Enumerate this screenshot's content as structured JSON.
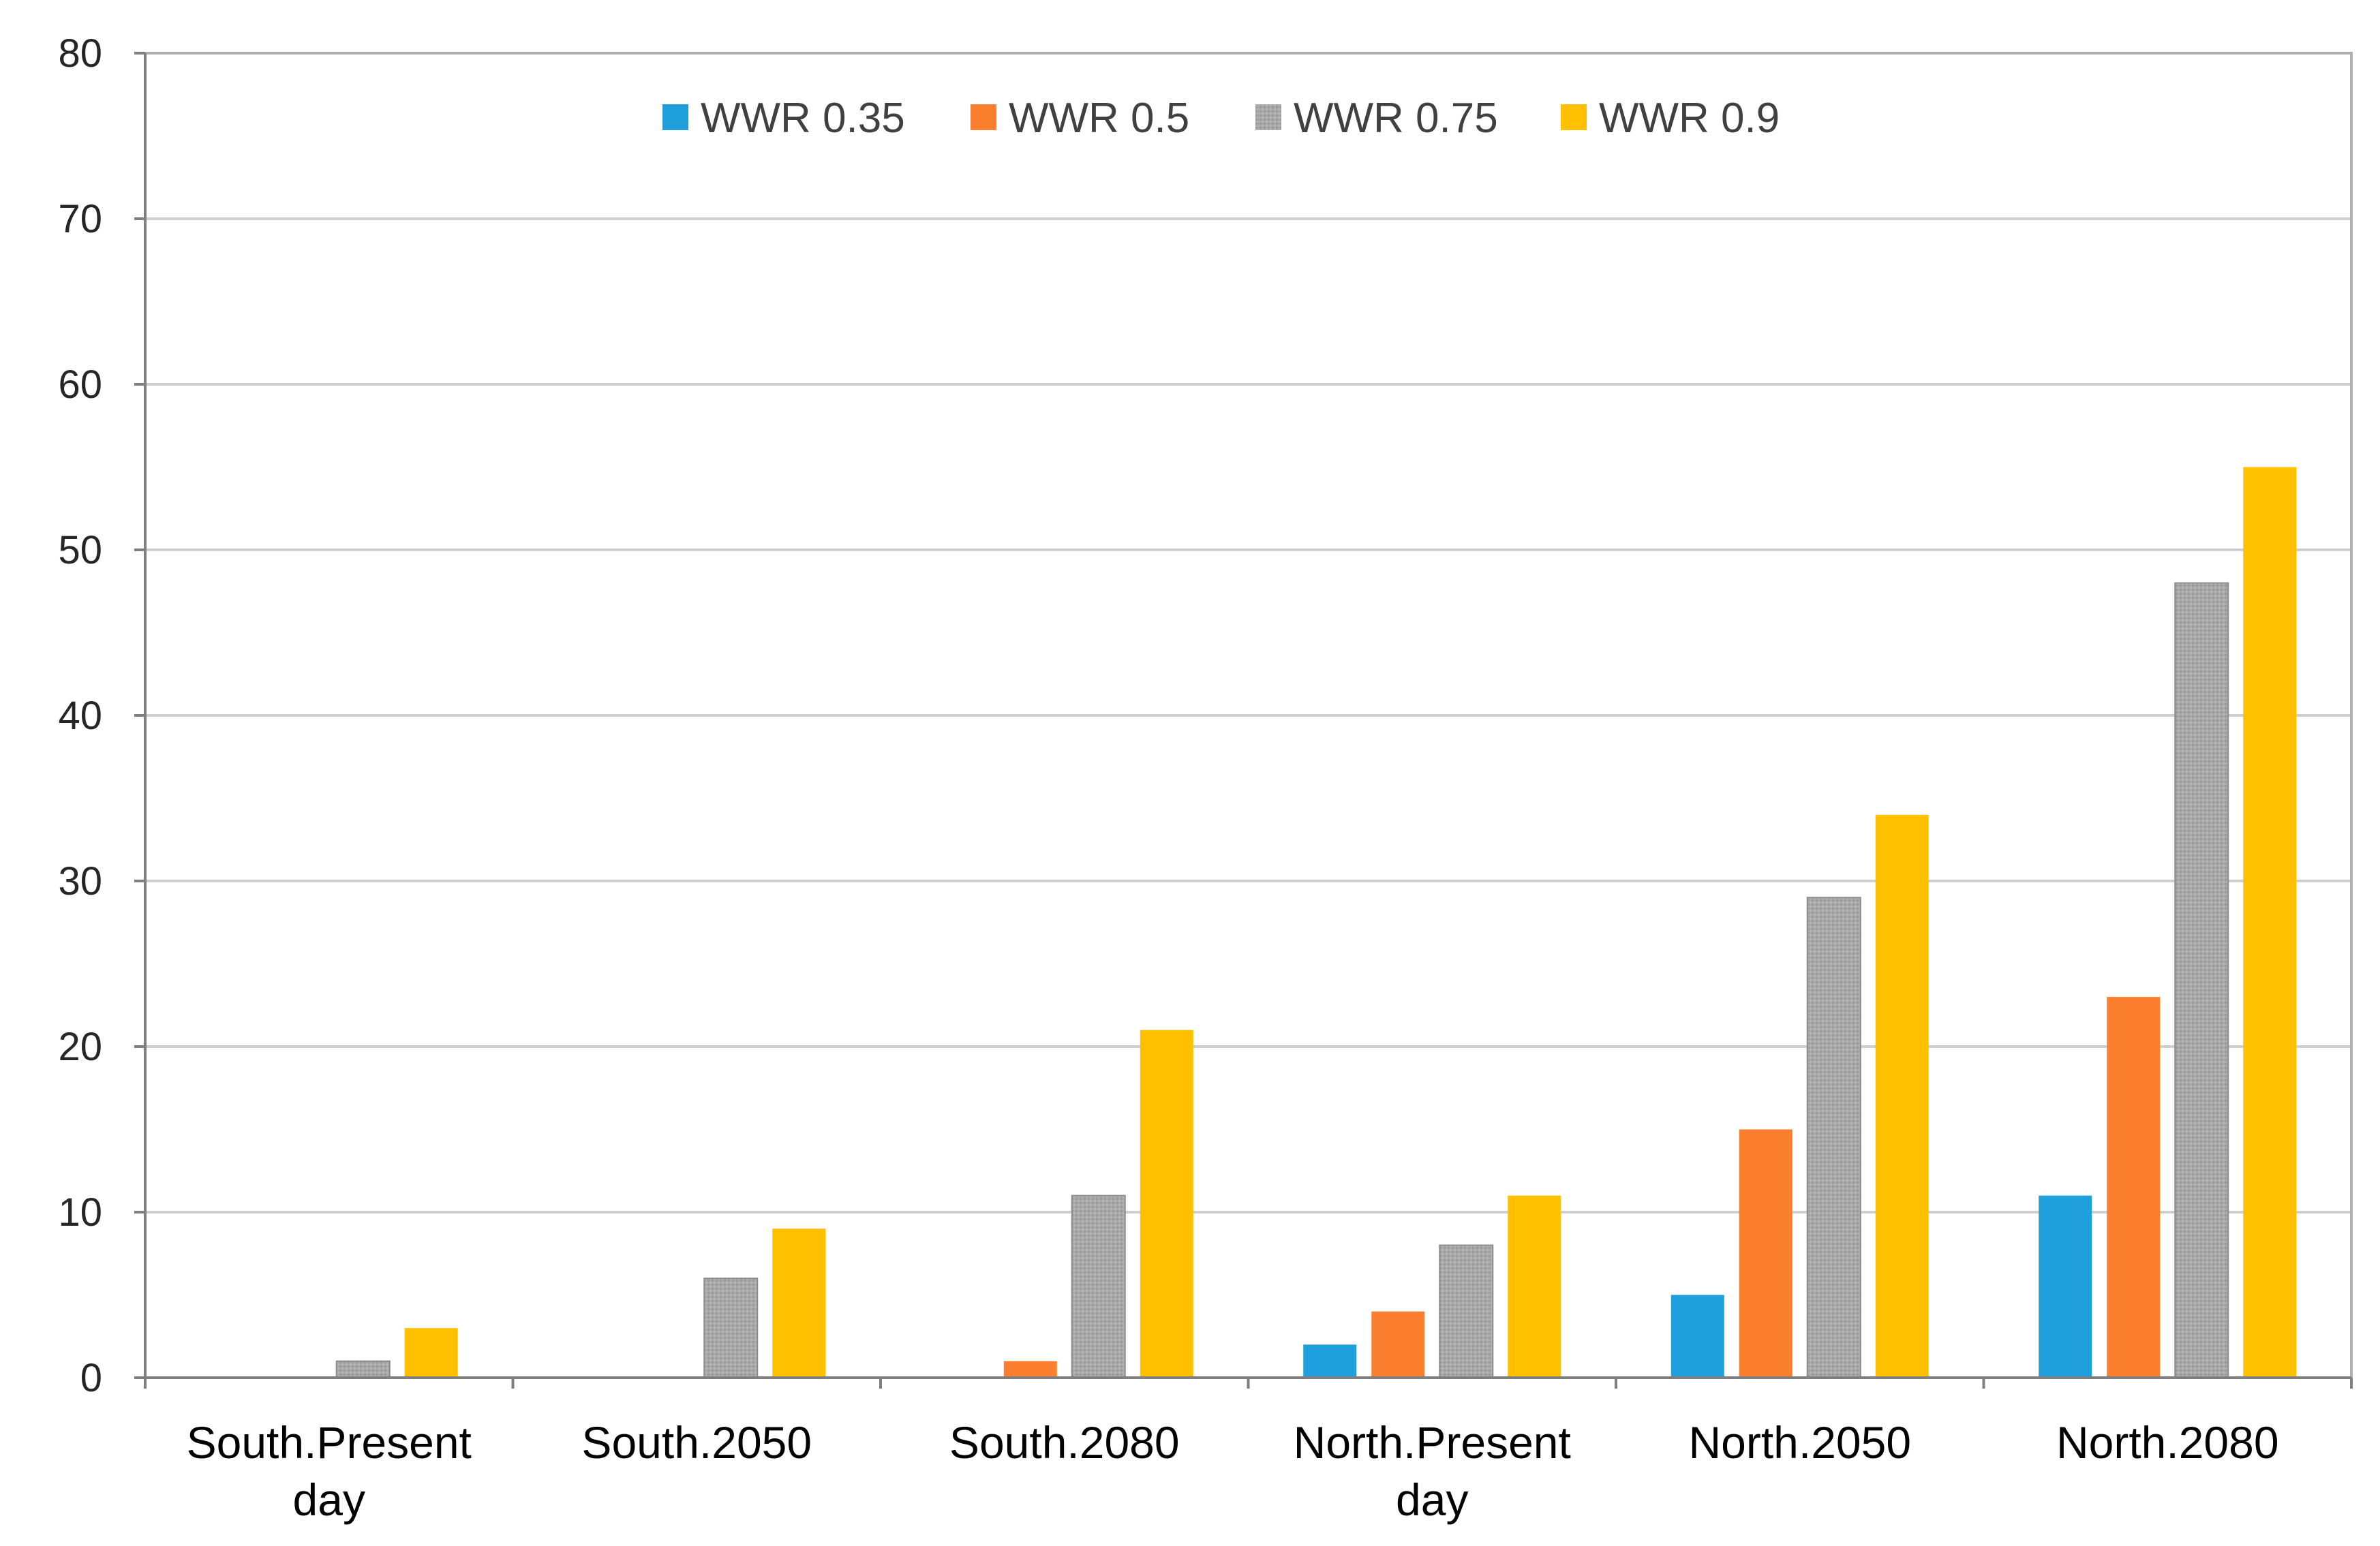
{
  "chart_data": {
    "type": "bar",
    "title": "",
    "xlabel": "",
    "ylabel": "",
    "ylim": [
      0,
      80
    ],
    "yticks": [
      0,
      10,
      20,
      30,
      40,
      50,
      60,
      70,
      80
    ],
    "grid": true,
    "legend_position": "top-center",
    "categories": [
      [
        "South.Present",
        "day"
      ],
      [
        "South.2050"
      ],
      [
        "South.2080"
      ],
      [
        "North.Present",
        "day"
      ],
      [
        "North.2050"
      ],
      [
        "North.2080"
      ]
    ],
    "series": [
      {
        "name": "WWR 0.35",
        "color": "#1f9fdb",
        "values": [
          0,
          0,
          0,
          2,
          5,
          11
        ]
      },
      {
        "name": "WWR 0.5",
        "color": "#fb7f2e",
        "values": [
          0,
          0,
          1,
          4,
          15,
          23
        ]
      },
      {
        "name": "WWR 0.75",
        "color": "#a6a6a6",
        "values": [
          1,
          6,
          11,
          8,
          29,
          48
        ]
      },
      {
        "name": "WWR 0.9",
        "color": "#ffc000",
        "values": [
          3,
          9,
          21,
          11,
          34,
          55
        ]
      }
    ]
  }
}
